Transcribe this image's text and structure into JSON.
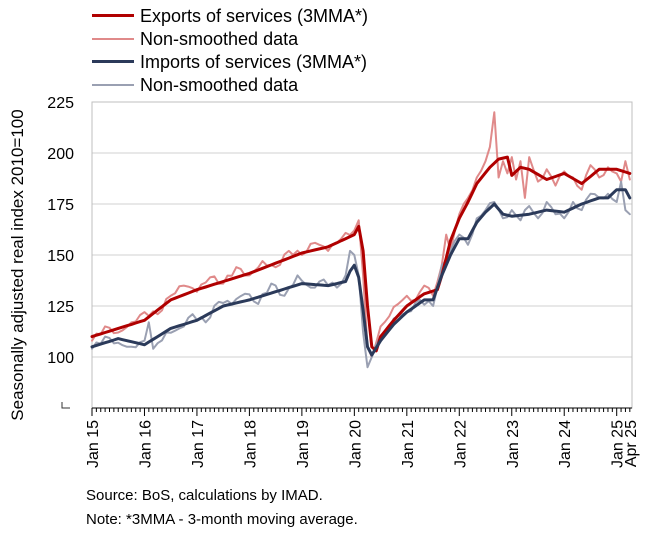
{
  "legend": {
    "items": [
      {
        "label": "Exports of services (3MMA*)",
        "color": "#b00000",
        "width": 3
      },
      {
        "label": "Non-smoothed data",
        "color": "#e08a8a",
        "width": 2
      },
      {
        "label": "Imports of services (3MMA*)",
        "color": "#2b3a5a",
        "width": 3
      },
      {
        "label": "Non-smoothed data",
        "color": "#9aa0b2",
        "width": 2
      }
    ]
  },
  "footer": {
    "source": "Source: BoS, calculations by IMAD.",
    "note": "Note: *3MMA - 3-month moving average."
  },
  "chart_data": {
    "type": "line",
    "title": "",
    "ylabel": "Seasonally adjusted real index 2010=100",
    "xlabel": "",
    "ylim": [
      75,
      225
    ],
    "yticks": [
      100,
      125,
      150,
      175,
      200,
      225
    ],
    "ytick_labels": [
      "100",
      "125",
      "150",
      "175",
      "200",
      "225"
    ],
    "xticks": [
      {
        "month_index": 0,
        "label": "Jan 15"
      },
      {
        "month_index": 12,
        "label": "Jan 16"
      },
      {
        "month_index": 24,
        "label": "Jan 17"
      },
      {
        "month_index": 36,
        "label": "Jan 18"
      },
      {
        "month_index": 48,
        "label": "Jan 19"
      },
      {
        "month_index": 60,
        "label": "Jan 20"
      },
      {
        "month_index": 72,
        "label": "Jan 21"
      },
      {
        "month_index": 84,
        "label": "Jan 22"
      },
      {
        "month_index": 96,
        "label": "Jan 23"
      },
      {
        "month_index": 108,
        "label": "Jan 24"
      },
      {
        "month_index": 120,
        "label": "Jan 25"
      },
      {
        "month_index": 123,
        "label": "Apr 25"
      }
    ],
    "grid": true,
    "legend_position": "top-left",
    "series": [
      {
        "name": "Exports of services (3MMA*)",
        "color": "#b00000",
        "width": 3,
        "anchors": [
          [
            0,
            110
          ],
          [
            6,
            114
          ],
          [
            12,
            118
          ],
          [
            18,
            128
          ],
          [
            24,
            133
          ],
          [
            30,
            137
          ],
          [
            36,
            141
          ],
          [
            42,
            146
          ],
          [
            48,
            151
          ],
          [
            54,
            154
          ],
          [
            60,
            160
          ],
          [
            61,
            164
          ],
          [
            62,
            152
          ],
          [
            63,
            125
          ],
          [
            64,
            105
          ],
          [
            65,
            103
          ],
          [
            66,
            110
          ],
          [
            69,
            118
          ],
          [
            72,
            125
          ],
          [
            76,
            131
          ],
          [
            79,
            133
          ],
          [
            80,
            140
          ],
          [
            82,
            157
          ],
          [
            84,
            168
          ],
          [
            86,
            176
          ],
          [
            88,
            185
          ],
          [
            91,
            193
          ],
          [
            93,
            197
          ],
          [
            95,
            198
          ],
          [
            96,
            189
          ],
          [
            98,
            193
          ],
          [
            100,
            192
          ],
          [
            104,
            187
          ],
          [
            108,
            190
          ],
          [
            112,
            185
          ],
          [
            116,
            192
          ],
          [
            118,
            192
          ],
          [
            120,
            192
          ],
          [
            123,
            190
          ]
        ]
      },
      {
        "name": "Non-smoothed data",
        "color": "#e08a8a",
        "width": 2,
        "anchors": [
          [
            0,
            108
          ],
          [
            3,
            115
          ],
          [
            6,
            112
          ],
          [
            9,
            117
          ],
          [
            12,
            122
          ],
          [
            15,
            121
          ],
          [
            18,
            130
          ],
          [
            21,
            135
          ],
          [
            24,
            132
          ],
          [
            27,
            139
          ],
          [
            30,
            136
          ],
          [
            33,
            144
          ],
          [
            36,
            140
          ],
          [
            39,
            147
          ],
          [
            42,
            144
          ],
          [
            45,
            152
          ],
          [
            48,
            150
          ],
          [
            51,
            156
          ],
          [
            54,
            152
          ],
          [
            57,
            158
          ],
          [
            60,
            162
          ],
          [
            61,
            167
          ],
          [
            62,
            140
          ],
          [
            63,
            105
          ],
          [
            64,
            100
          ],
          [
            65,
            107
          ],
          [
            66,
            115
          ],
          [
            68,
            120
          ],
          [
            70,
            126
          ],
          [
            72,
            130
          ],
          [
            74,
            128
          ],
          [
            76,
            135
          ],
          [
            78,
            130
          ],
          [
            80,
            145
          ],
          [
            81,
            160
          ],
          [
            82,
            152
          ],
          [
            84,
            170
          ],
          [
            86,
            178
          ],
          [
            88,
            188
          ],
          [
            90,
            196
          ],
          [
            91,
            203
          ],
          [
            92,
            220
          ],
          [
            93,
            188
          ],
          [
            94,
            196
          ],
          [
            95,
            190
          ],
          [
            96,
            198
          ],
          [
            97,
            187
          ],
          [
            98,
            196
          ],
          [
            99,
            178
          ],
          [
            100,
            198
          ],
          [
            102,
            186
          ],
          [
            104,
            192
          ],
          [
            106,
            184
          ],
          [
            108,
            191
          ],
          [
            110,
            188
          ],
          [
            112,
            182
          ],
          [
            114,
            194
          ],
          [
            116,
            188
          ],
          [
            118,
            193
          ],
          [
            120,
            190
          ],
          [
            121,
            186
          ],
          [
            122,
            196
          ],
          [
            123,
            187
          ]
        ]
      },
      {
        "name": "Imports of services (3MMA*)",
        "color": "#2b3a5a",
        "width": 3,
        "anchors": [
          [
            0,
            105
          ],
          [
            6,
            109
          ],
          [
            12,
            106
          ],
          [
            18,
            114
          ],
          [
            24,
            118
          ],
          [
            30,
            125
          ],
          [
            36,
            128
          ],
          [
            42,
            132
          ],
          [
            48,
            136
          ],
          [
            54,
            135
          ],
          [
            58,
            137
          ],
          [
            59,
            142
          ],
          [
            60,
            145
          ],
          [
            61,
            139
          ],
          [
            62,
            123
          ],
          [
            63,
            105
          ],
          [
            64,
            101
          ],
          [
            66,
            108
          ],
          [
            69,
            116
          ],
          [
            72,
            122
          ],
          [
            76,
            128
          ],
          [
            78,
            128
          ],
          [
            80,
            140
          ],
          [
            82,
            150
          ],
          [
            84,
            158
          ],
          [
            86,
            158
          ],
          [
            88,
            166
          ],
          [
            90,
            171
          ],
          [
            92,
            175
          ],
          [
            94,
            170
          ],
          [
            96,
            169
          ],
          [
            100,
            170
          ],
          [
            104,
            172
          ],
          [
            108,
            171
          ],
          [
            112,
            175
          ],
          [
            116,
            178
          ],
          [
            118,
            178
          ],
          [
            120,
            182
          ],
          [
            122,
            182
          ],
          [
            123,
            178
          ]
        ]
      },
      {
        "name": "Non-smoothed data",
        "color": "#9aa0b2",
        "width": 2,
        "anchors": [
          [
            0,
            104
          ],
          [
            3,
            110
          ],
          [
            6,
            107
          ],
          [
            9,
            105
          ],
          [
            12,
            108
          ],
          [
            13,
            117
          ],
          [
            14,
            104
          ],
          [
            17,
            112
          ],
          [
            20,
            114
          ],
          [
            23,
            121
          ],
          [
            26,
            117
          ],
          [
            29,
            127
          ],
          [
            32,
            126
          ],
          [
            35,
            131
          ],
          [
            38,
            126
          ],
          [
            41,
            136
          ],
          [
            44,
            130
          ],
          [
            47,
            140
          ],
          [
            50,
            134
          ],
          [
            53,
            138
          ],
          [
            56,
            134
          ],
          [
            58,
            140
          ],
          [
            59,
            152
          ],
          [
            60,
            150
          ],
          [
            61,
            140
          ],
          [
            62,
            112
          ],
          [
            63,
            95
          ],
          [
            64,
            100
          ],
          [
            65,
            106
          ],
          [
            67,
            112
          ],
          [
            70,
            120
          ],
          [
            72,
            122
          ],
          [
            75,
            128
          ],
          [
            78,
            125
          ],
          [
            80,
            145
          ],
          [
            82,
            152
          ],
          [
            84,
            160
          ],
          [
            86,
            155
          ],
          [
            88,
            168
          ],
          [
            90,
            172
          ],
          [
            92,
            176
          ],
          [
            94,
            168
          ],
          [
            96,
            172
          ],
          [
            98,
            167
          ],
          [
            100,
            174
          ],
          [
            102,
            168
          ],
          [
            104,
            176
          ],
          [
            106,
            170
          ],
          [
            108,
            168
          ],
          [
            110,
            176
          ],
          [
            112,
            172
          ],
          [
            114,
            180
          ],
          [
            116,
            178
          ],
          [
            118,
            180
          ],
          [
            120,
            176
          ],
          [
            121,
            186
          ],
          [
            122,
            172
          ],
          [
            123,
            170
          ]
        ]
      }
    ]
  }
}
